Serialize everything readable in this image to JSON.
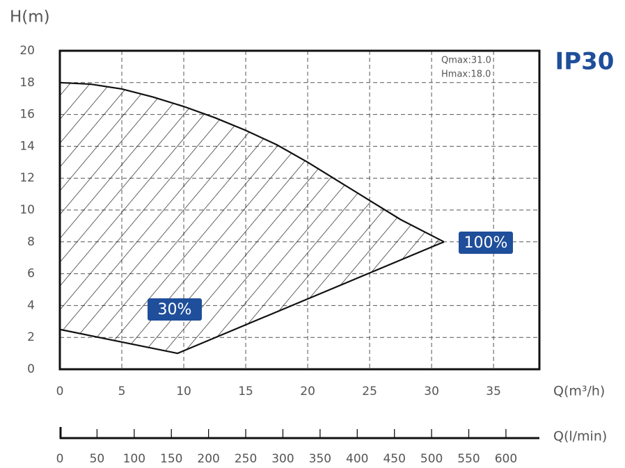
{
  "chart_data": {
    "type": "area",
    "title": "IP30",
    "x_label": "Q(m³/h)",
    "y_label": "H(m)",
    "x2_label": "Q(l/min)",
    "annotations": [
      "Qmax:31.0",
      "Hmax:18.0"
    ],
    "xlim": [
      0,
      38.7
    ],
    "ylim": [
      0,
      20
    ],
    "xticks": [
      0,
      5,
      10,
      15,
      20,
      25,
      30,
      35
    ],
    "yticks": [
      0,
      2,
      4,
      6,
      8,
      10,
      12,
      14,
      16,
      18,
      20
    ],
    "x2lim": [
      0,
      645
    ],
    "x2ticks": [
      0,
      50,
      100,
      150,
      200,
      250,
      300,
      350,
      400,
      450,
      500,
      550,
      600
    ],
    "grid": true,
    "color": "#1f4e9a",
    "series": [
      {
        "name": "100%",
        "color": "#111111",
        "x": [
          0,
          2.5,
          5,
          7.5,
          10,
          12.5,
          15,
          17.5,
          20,
          22.5,
          25,
          27.5,
          31
        ],
        "values": [
          18,
          17.9,
          17.6,
          17.1,
          16.5,
          15.8,
          15.0,
          14.1,
          13.0,
          11.8,
          10.6,
          9.4,
          8.0
        ]
      },
      {
        "name": "30%",
        "color": "#111111",
        "x": [
          0,
          9.5,
          31
        ],
        "values": [
          2.5,
          1.0,
          8.0
        ]
      }
    ]
  }
}
